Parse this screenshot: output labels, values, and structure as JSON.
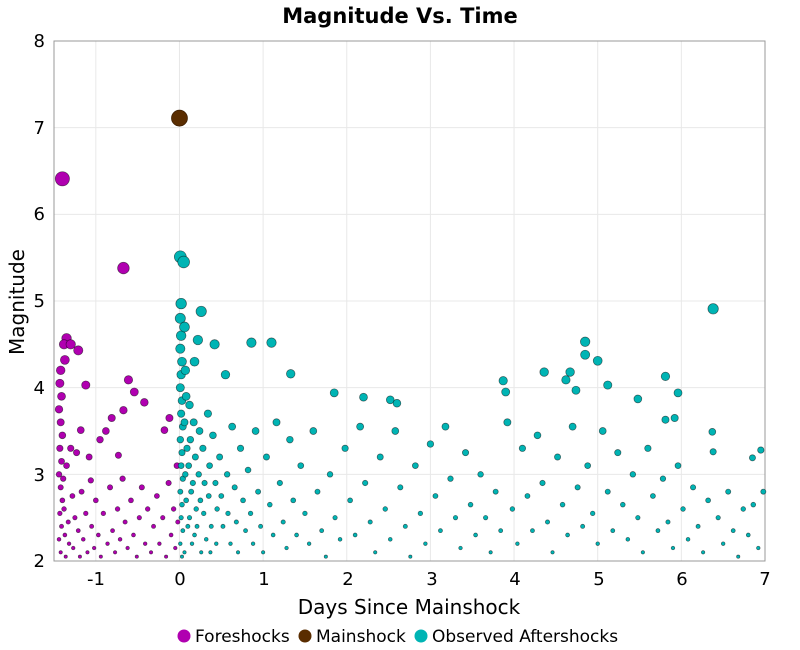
{
  "chart_data": {
    "type": "scatter",
    "title": "Magnitude Vs. Time",
    "xlabel": "Days Since Mainshock",
    "ylabel": "Magnitude",
    "xlim": [
      -1.5,
      7
    ],
    "ylim": [
      2,
      8
    ],
    "xticks": [
      "-1",
      "0",
      "1",
      "2",
      "3",
      "4",
      "5",
      "6",
      "7"
    ],
    "yticks": [
      "2",
      "3",
      "4",
      "5",
      "6",
      "7",
      "8"
    ],
    "grid": true,
    "legend_position": "bottom",
    "series": [
      {
        "name": "Foreshocks",
        "color": "#b000b0",
        "points": [
          [
            -1.4,
            6.41
          ],
          [
            -0.67,
            5.38
          ],
          [
            -1.35,
            4.57
          ],
          [
            -1.38,
            4.5
          ],
          [
            -1.3,
            4.5
          ],
          [
            -1.21,
            4.43
          ],
          [
            -1.37,
            4.32
          ],
          [
            -1.12,
            4.03
          ],
          [
            -0.61,
            4.09
          ],
          [
            -0.54,
            3.95
          ],
          [
            -0.42,
            3.83
          ],
          [
            -0.67,
            3.74
          ],
          [
            -0.81,
            3.65
          ],
          [
            -0.95,
            3.4
          ],
          [
            -1.18,
            3.51
          ],
          [
            -0.18,
            3.51
          ],
          [
            -0.12,
            3.65
          ],
          [
            -0.73,
            3.22
          ],
          [
            -1.06,
            2.93
          ],
          [
            -1.42,
            4.2
          ],
          [
            -1.43,
            4.05
          ],
          [
            -1.41,
            3.9
          ],
          [
            -1.44,
            3.75
          ],
          [
            -1.42,
            3.6
          ],
          [
            -1.4,
            3.45
          ],
          [
            -1.43,
            3.3
          ],
          [
            -1.41,
            3.15
          ],
          [
            -1.44,
            3.0
          ],
          [
            -1.42,
            2.85
          ],
          [
            -1.4,
            2.7
          ],
          [
            -1.43,
            2.55
          ],
          [
            -1.41,
            2.4
          ],
          [
            -1.44,
            2.25
          ],
          [
            -1.42,
            2.1
          ],
          [
            -1.39,
            2.95
          ],
          [
            -1.38,
            2.6
          ],
          [
            -1.37,
            2.3
          ],
          [
            -1.36,
            2.05
          ],
          [
            -1.35,
            3.1
          ],
          [
            -1.33,
            2.45
          ],
          [
            -1.32,
            2.2
          ],
          [
            -1.3,
            3.3
          ],
          [
            -1.28,
            2.75
          ],
          [
            -1.27,
            2.15
          ],
          [
            -1.25,
            2.5
          ],
          [
            -1.23,
            3.25
          ],
          [
            -1.21,
            2.35
          ],
          [
            -1.19,
            2.05
          ],
          [
            -1.17,
            2.8
          ],
          [
            -1.15,
            2.25
          ],
          [
            -1.12,
            2.55
          ],
          [
            -1.1,
            2.1
          ],
          [
            -1.08,
            3.2
          ],
          [
            -1.05,
            2.4
          ],
          [
            -1.02,
            2.15
          ],
          [
            -1.0,
            2.7
          ],
          [
            -0.97,
            2.3
          ],
          [
            -0.94,
            2.05
          ],
          [
            -0.91,
            2.55
          ],
          [
            -0.88,
            3.5
          ],
          [
            -0.86,
            2.2
          ],
          [
            -0.83,
            2.85
          ],
          [
            -0.8,
            2.35
          ],
          [
            -0.77,
            2.1
          ],
          [
            -0.74,
            2.6
          ],
          [
            -0.71,
            2.25
          ],
          [
            -0.68,
            2.95
          ],
          [
            -0.65,
            2.45
          ],
          [
            -0.62,
            2.15
          ],
          [
            -0.58,
            2.7
          ],
          [
            -0.55,
            2.3
          ],
          [
            -0.51,
            2.05
          ],
          [
            -0.48,
            2.5
          ],
          [
            -0.45,
            2.85
          ],
          [
            -0.41,
            2.2
          ],
          [
            -0.38,
            2.6
          ],
          [
            -0.34,
            2.1
          ],
          [
            -0.31,
            2.4
          ],
          [
            -0.27,
            2.75
          ],
          [
            -0.24,
            2.2
          ],
          [
            -0.2,
            2.5
          ],
          [
            -0.16,
            2.05
          ],
          [
            -0.13,
            2.9
          ],
          [
            -0.1,
            2.3
          ],
          [
            -0.07,
            2.6
          ],
          [
            -0.05,
            2.15
          ],
          [
            -0.03,
            3.1
          ],
          [
            -0.02,
            2.45
          ]
        ]
      },
      {
        "name": "Mainshock",
        "color": "#5a2d00",
        "points": [
          [
            0.0,
            7.11
          ]
        ]
      },
      {
        "name": "Observed Aftershocks",
        "color": "#00b4b4",
        "points": [
          [
            0.01,
            5.51
          ],
          [
            0.05,
            5.45
          ],
          [
            0.02,
            4.97
          ],
          [
            0.26,
            4.88
          ],
          [
            0.42,
            4.5
          ],
          [
            0.86,
            4.52
          ],
          [
            1.1,
            4.52
          ],
          [
            1.33,
            4.16
          ],
          [
            6.38,
            4.91
          ],
          [
            4.85,
            4.53
          ],
          [
            4.85,
            4.38
          ],
          [
            5.0,
            4.31
          ],
          [
            5.12,
            4.03
          ],
          [
            5.81,
            4.13
          ],
          [
            5.96,
            3.94
          ],
          [
            4.36,
            4.18
          ],
          [
            3.87,
            4.08
          ],
          [
            3.9,
            3.95
          ],
          [
            4.67,
            4.18
          ],
          [
            4.62,
            4.09
          ],
          [
            4.74,
            3.97
          ],
          [
            1.85,
            3.94
          ],
          [
            2.2,
            3.89
          ],
          [
            2.52,
            3.86
          ],
          [
            2.6,
            3.82
          ],
          [
            5.48,
            3.87
          ],
          [
            5.92,
            3.65
          ],
          [
            5.81,
            3.63
          ],
          [
            6.37,
            3.49
          ],
          [
            6.95,
            3.28
          ],
          [
            6.85,
            3.19
          ],
          [
            6.38,
            3.26
          ],
          [
            6.98,
            2.8
          ],
          [
            0.01,
            4.8
          ],
          [
            0.02,
            4.6
          ],
          [
            0.01,
            4.45
          ],
          [
            0.03,
            4.3
          ],
          [
            0.02,
            4.15
          ],
          [
            0.01,
            4.0
          ],
          [
            0.03,
            3.85
          ],
          [
            0.02,
            3.7
          ],
          [
            0.04,
            3.55
          ],
          [
            0.01,
            3.4
          ],
          [
            0.03,
            3.25
          ],
          [
            0.02,
            3.1
          ],
          [
            0.04,
            2.95
          ],
          [
            0.01,
            2.8
          ],
          [
            0.03,
            2.65
          ],
          [
            0.02,
            2.5
          ],
          [
            0.04,
            2.35
          ],
          [
            0.01,
            2.2
          ],
          [
            0.03,
            2.05
          ],
          [
            0.06,
            4.7
          ],
          [
            0.07,
            4.2
          ],
          [
            0.08,
            3.9
          ],
          [
            0.06,
            3.6
          ],
          [
            0.09,
            3.3
          ],
          [
            0.07,
            3.0
          ],
          [
            0.08,
            2.7
          ],
          [
            0.1,
            2.4
          ],
          [
            0.06,
            2.1
          ],
          [
            0.12,
            3.8
          ],
          [
            0.13,
            3.4
          ],
          [
            0.11,
            3.1
          ],
          [
            0.14,
            2.8
          ],
          [
            0.12,
            2.5
          ],
          [
            0.15,
            2.2
          ],
          [
            0.18,
            4.3
          ],
          [
            0.17,
            3.6
          ],
          [
            0.19,
            3.2
          ],
          [
            0.16,
            2.9
          ],
          [
            0.2,
            2.6
          ],
          [
            0.18,
            2.3
          ],
          [
            0.22,
            4.55
          ],
          [
            0.24,
            3.5
          ],
          [
            0.23,
            3.0
          ],
          [
            0.25,
            2.7
          ],
          [
            0.21,
            2.4
          ],
          [
            0.26,
            2.1
          ],
          [
            0.28,
            3.3
          ],
          [
            0.3,
            2.9
          ],
          [
            0.29,
            2.55
          ],
          [
            0.32,
            2.25
          ],
          [
            0.34,
            3.7
          ],
          [
            0.36,
            3.1
          ],
          [
            0.35,
            2.75
          ],
          [
            0.38,
            2.4
          ],
          [
            0.37,
            2.1
          ],
          [
            0.4,
            3.45
          ],
          [
            0.43,
            2.9
          ],
          [
            0.45,
            2.6
          ],
          [
            0.44,
            2.2
          ],
          [
            0.48,
            3.2
          ],
          [
            0.5,
            2.75
          ],
          [
            0.52,
            2.4
          ],
          [
            0.55,
            4.15
          ],
          [
            0.57,
            3.0
          ],
          [
            0.58,
            2.55
          ],
          [
            0.61,
            2.2
          ],
          [
            0.63,
            3.55
          ],
          [
            0.66,
            2.85
          ],
          [
            0.68,
            2.45
          ],
          [
            0.7,
            2.1
          ],
          [
            0.73,
            3.3
          ],
          [
            0.76,
            2.7
          ],
          [
            0.79,
            2.35
          ],
          [
            0.82,
            3.05
          ],
          [
            0.85,
            2.55
          ],
          [
            0.88,
            2.2
          ],
          [
            0.91,
            3.5
          ],
          [
            0.94,
            2.8
          ],
          [
            0.97,
            2.4
          ],
          [
            1.0,
            2.1
          ],
          [
            1.04,
            3.2
          ],
          [
            1.08,
            2.65
          ],
          [
            1.12,
            2.3
          ],
          [
            1.16,
            3.6
          ],
          [
            1.2,
            2.9
          ],
          [
            1.24,
            2.45
          ],
          [
            1.28,
            2.15
          ],
          [
            1.32,
            3.4
          ],
          [
            1.36,
            2.7
          ],
          [
            1.4,
            2.3
          ],
          [
            1.45,
            3.1
          ],
          [
            1.5,
            2.55
          ],
          [
            1.55,
            2.2
          ],
          [
            1.6,
            3.5
          ],
          [
            1.65,
            2.8
          ],
          [
            1.7,
            2.35
          ],
          [
            1.75,
            2.05
          ],
          [
            1.8,
            3.0
          ],
          [
            1.86,
            2.5
          ],
          [
            1.92,
            2.25
          ],
          [
            1.98,
            3.3
          ],
          [
            2.04,
            2.7
          ],
          [
            2.1,
            2.3
          ],
          [
            2.16,
            3.55
          ],
          [
            2.22,
            2.9
          ],
          [
            2.28,
            2.45
          ],
          [
            2.34,
            2.1
          ],
          [
            2.4,
            3.2
          ],
          [
            2.46,
            2.6
          ],
          [
            2.52,
            2.25
          ],
          [
            2.58,
            3.5
          ],
          [
            2.64,
            2.85
          ],
          [
            2.7,
            2.4
          ],
          [
            2.76,
            2.05
          ],
          [
            2.82,
            3.1
          ],
          [
            2.88,
            2.55
          ],
          [
            2.94,
            2.2
          ],
          [
            3.0,
            3.35
          ],
          [
            3.06,
            2.75
          ],
          [
            3.12,
            2.35
          ],
          [
            3.18,
            3.55
          ],
          [
            3.24,
            2.95
          ],
          [
            3.3,
            2.5
          ],
          [
            3.36,
            2.15
          ],
          [
            3.42,
            3.25
          ],
          [
            3.48,
            2.65
          ],
          [
            3.54,
            2.3
          ],
          [
            3.6,
            3.0
          ],
          [
            3.66,
            2.5
          ],
          [
            3.72,
            2.1
          ],
          [
            3.78,
            2.8
          ],
          [
            3.84,
            2.35
          ],
          [
            3.92,
            3.6
          ],
          [
            3.98,
            2.6
          ],
          [
            4.04,
            2.2
          ],
          [
            4.1,
            3.3
          ],
          [
            4.16,
            2.75
          ],
          [
            4.22,
            2.35
          ],
          [
            4.28,
            3.45
          ],
          [
            4.34,
            2.9
          ],
          [
            4.4,
            2.45
          ],
          [
            4.46,
            2.1
          ],
          [
            4.52,
            3.2
          ],
          [
            4.58,
            2.65
          ],
          [
            4.64,
            2.3
          ],
          [
            4.7,
            3.55
          ],
          [
            4.76,
            2.85
          ],
          [
            4.82,
            2.4
          ],
          [
            4.88,
            3.1
          ],
          [
            4.94,
            2.55
          ],
          [
            5.0,
            2.2
          ],
          [
            5.06,
            3.5
          ],
          [
            5.12,
            2.8
          ],
          [
            5.18,
            2.35
          ],
          [
            5.24,
            3.25
          ],
          [
            5.3,
            2.65
          ],
          [
            5.36,
            2.25
          ],
          [
            5.42,
            3.0
          ],
          [
            5.48,
            2.5
          ],
          [
            5.54,
            2.1
          ],
          [
            5.6,
            3.3
          ],
          [
            5.66,
            2.75
          ],
          [
            5.72,
            2.35
          ],
          [
            5.78,
            2.95
          ],
          [
            5.84,
            2.45
          ],
          [
            5.9,
            2.15
          ],
          [
            5.96,
            3.1
          ],
          [
            6.02,
            2.6
          ],
          [
            6.08,
            2.25
          ],
          [
            6.14,
            2.85
          ],
          [
            6.2,
            2.4
          ],
          [
            6.26,
            2.1
          ],
          [
            6.32,
            2.7
          ],
          [
            6.44,
            2.5
          ],
          [
            6.5,
            2.2
          ],
          [
            6.56,
            2.8
          ],
          [
            6.62,
            2.35
          ],
          [
            6.68,
            2.05
          ],
          [
            6.74,
            2.6
          ],
          [
            6.8,
            2.3
          ],
          [
            6.86,
            2.65
          ],
          [
            6.92,
            2.15
          ]
        ]
      }
    ]
  }
}
